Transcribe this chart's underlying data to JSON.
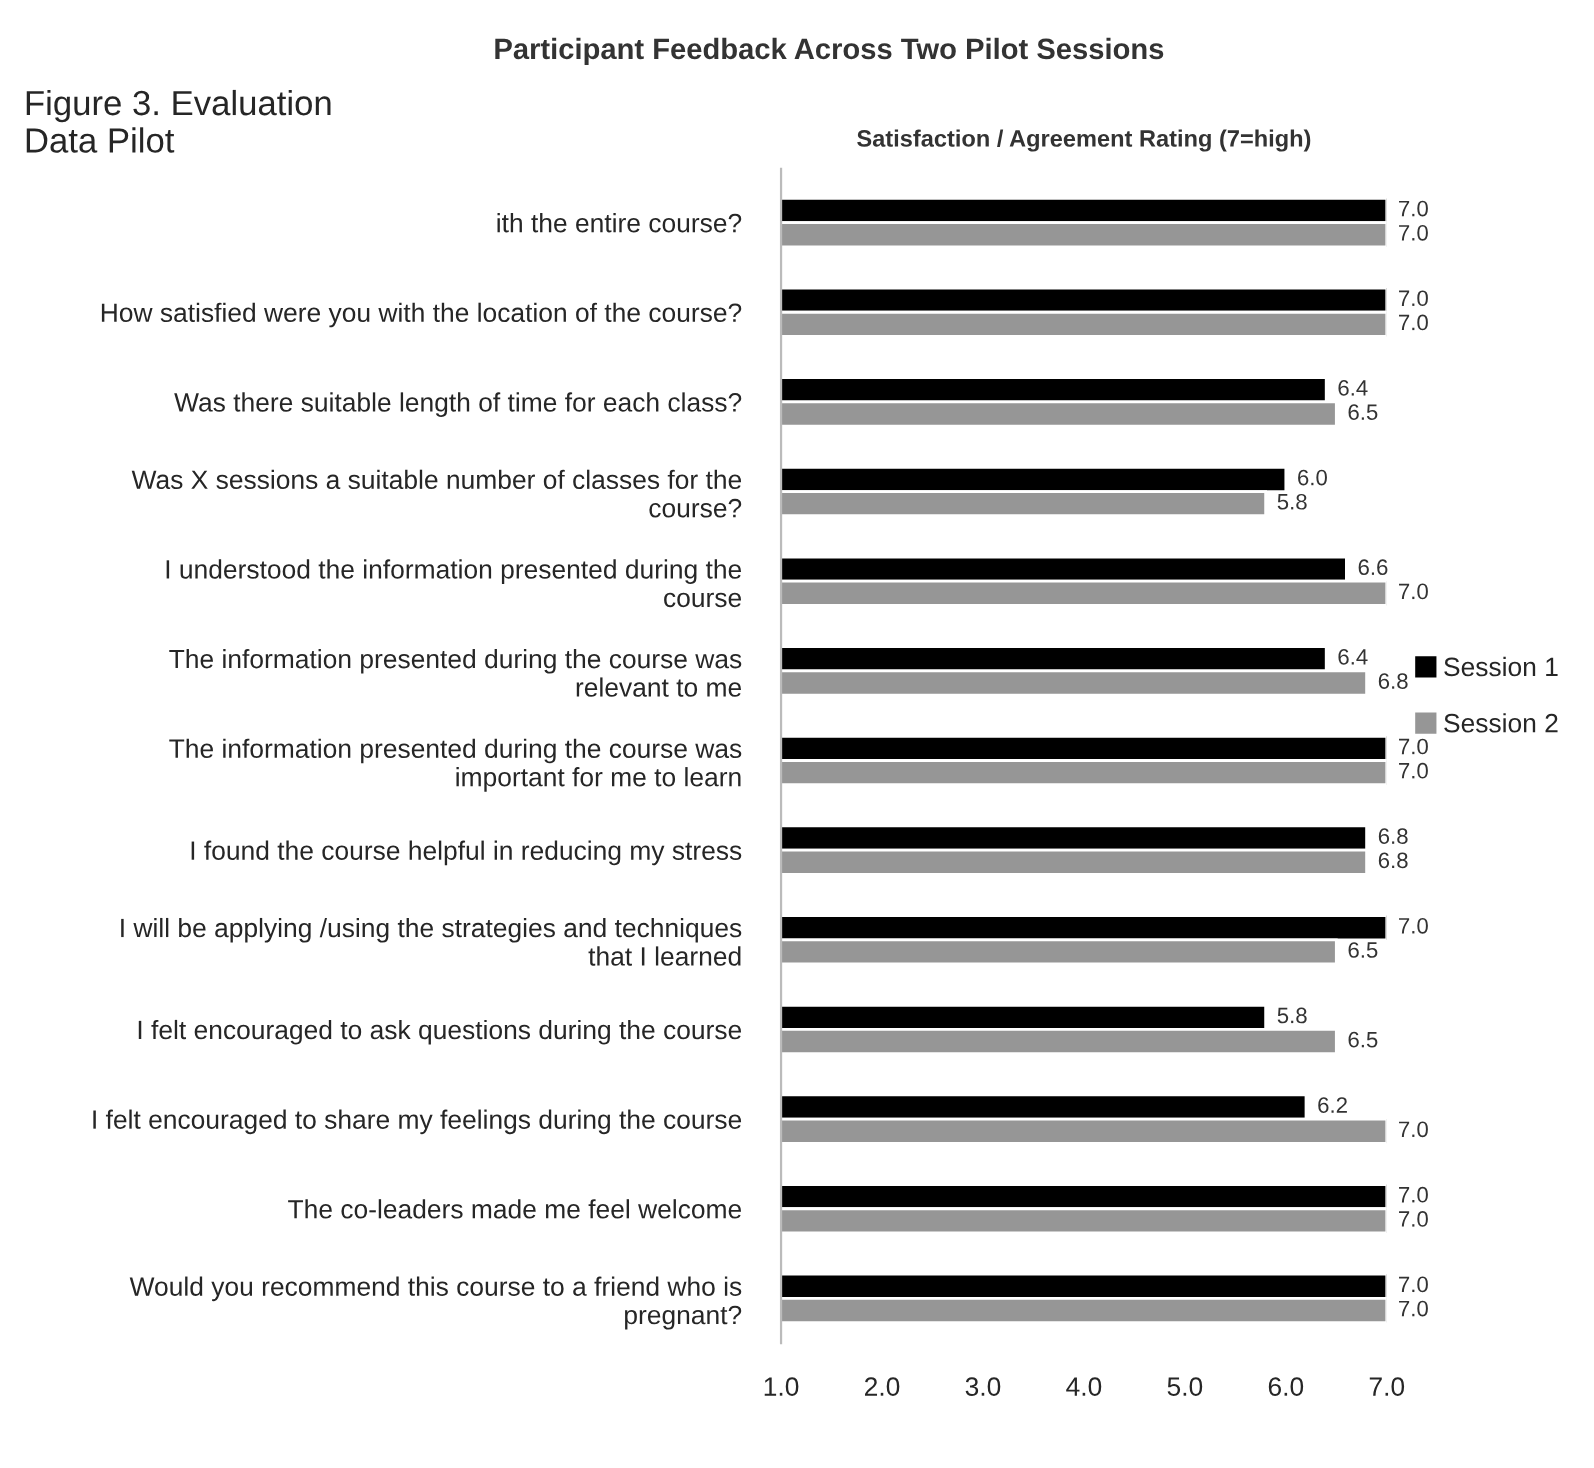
{
  "chart_data": {
    "type": "bar",
    "orientation": "horizontal",
    "title": "Participant Feedback Across Two Pilot Sessions",
    "subtitle": "Satisfaction / Agreement Rating (7=high)",
    "annotations": [
      "Figure 3. Evaluation\nData Pilot"
    ],
    "categories": [
      "ith the entire course?",
      "How satisfied were you with the location of the course?",
      "Was there suitable length of time for each class?",
      "Was X sessions a suitable number of classes for the\ncourse?",
      "I understood the information presented during the\ncourse",
      "The information presented during the course was\nrelevant to me",
      "The information presented during the course was\nimportant for me to learn",
      "I found the course helpful in reducing my stress",
      "I will be applying /using the strategies and techniques\nthat I learned",
      "I felt encouraged to ask questions during the course",
      "I felt encouraged to share my feelings during the course",
      "The co-leaders made me feel welcome",
      "Would you recommend this course to a friend who is\npregnant?"
    ],
    "series": [
      {
        "name": "Session 1",
        "color": "#000000",
        "values": [
          7,
          7,
          6.4,
          6,
          6.6,
          6.4,
          7,
          6.8,
          7,
          5.8,
          6.2,
          7,
          7
        ],
        "value_labels": [
          "7.0",
          "7.0",
          "6.4",
          "6.0",
          "6.6",
          "6.4",
          "7.0",
          "6.8",
          "7.0",
          "5.8",
          "6.2",
          "7.0",
          "7.0"
        ]
      },
      {
        "name": "Session 2",
        "color": "#969696",
        "values": [
          7,
          7,
          6.5,
          5.8,
          7,
          6.8,
          7,
          6.8,
          6.5,
          6.5,
          7,
          7,
          7
        ],
        "value_labels": [
          "7.0",
          "7.0",
          "6.5",
          "5.8",
          "7.0",
          "6.8",
          "7.0",
          "6.8",
          "6.5",
          "6.5",
          "7.0",
          "7.0",
          "7.0"
        ]
      }
    ],
    "xlim": [
      1.0,
      7.0
    ],
    "xticks": [
      {
        "value": 1,
        "label": "1.0"
      },
      {
        "value": 2,
        "label": "2.0"
      },
      {
        "value": 3,
        "label": "3.0"
      },
      {
        "value": 4,
        "label": "4.0"
      },
      {
        "value": 5,
        "label": "5.0"
      },
      {
        "value": 6,
        "label": "6.0"
      },
      {
        "value": 7,
        "label": "7.0"
      }
    ],
    "grid": false,
    "legend": "right"
  }
}
